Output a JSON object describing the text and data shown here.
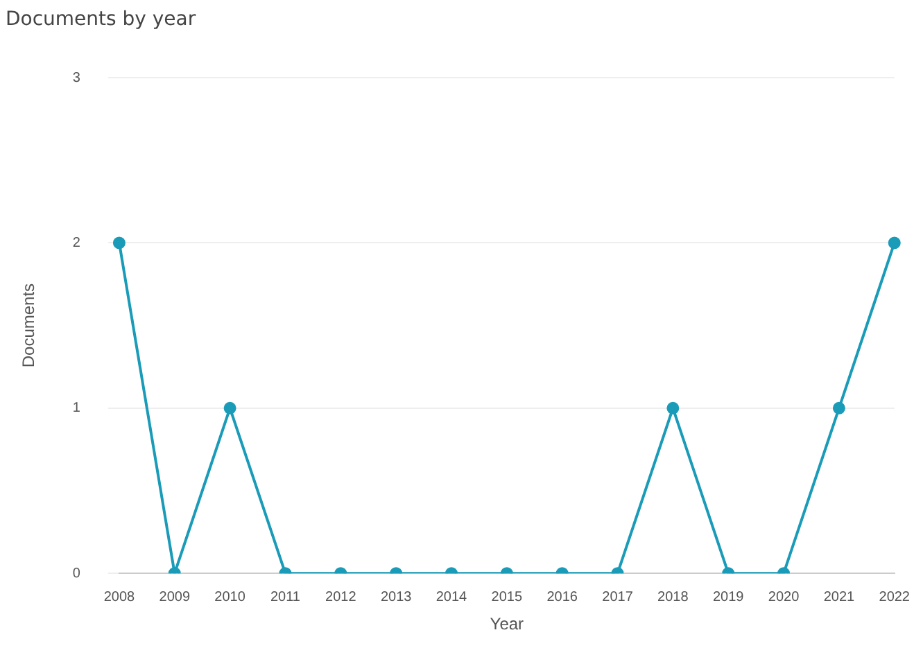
{
  "chart_data": {
    "type": "line",
    "title": "Documents by year",
    "xlabel": "Year",
    "ylabel": "Documents",
    "categories": [
      "2008",
      "2009",
      "2010",
      "2011",
      "2012",
      "2013",
      "2014",
      "2015",
      "2016",
      "2017",
      "2018",
      "2019",
      "2020",
      "2021",
      "2022"
    ],
    "series": [
      {
        "color": "#1a9bb8",
        "values": [
          2,
          0,
          1,
          0,
          0,
          0,
          0,
          0,
          0,
          0,
          1,
          0,
          0,
          1,
          2
        ]
      }
    ],
    "ylim": [
      0,
      3
    ],
    "yticks": [
      0,
      1,
      2,
      3
    ],
    "grid": "y",
    "legend": false,
    "marker": "circle",
    "line_style": "solid"
  }
}
